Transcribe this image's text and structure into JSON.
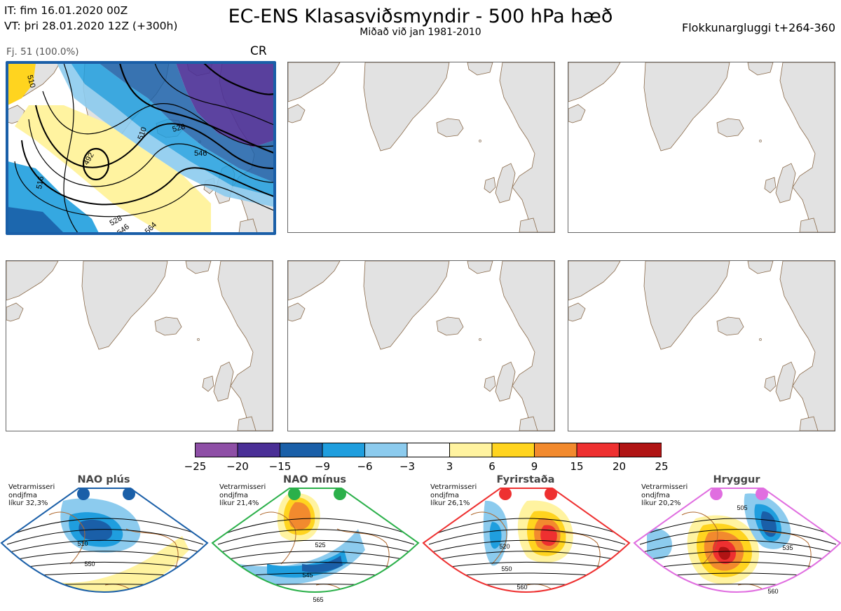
{
  "header": {
    "init_time": "IT: fim 16.01.2020 00Z",
    "valid_time": "VT: þri 28.01.2020 12Z  (+300h)",
    "title": "EC-ENS Klasasviðsmyndir - 500 hPa hæð",
    "subtitle": "Miðað við jan 1981-2010",
    "window": "Flokkunargluggi t+264-360"
  },
  "cluster": {
    "label": "Fj. 51 (100.0%)",
    "regime_code": "CR",
    "frame_color": "#1a5fa8",
    "contour_labels": [
      "510",
      "492",
      "528",
      "546",
      "528",
      "546",
      "564",
      "510",
      "516"
    ]
  },
  "colorbar": {
    "ticks": [
      "−25",
      "−20",
      "−15",
      "−9",
      "−6",
      "−3",
      "3",
      "6",
      "9",
      "15",
      "20",
      "25"
    ],
    "colors": [
      "#8e4fa6",
      "#4a2f96",
      "#1a5fa8",
      "#1f9ede",
      "#8ccbee",
      "#ffffff",
      "#fff3a0",
      "#ffd41f",
      "#f28a2e",
      "#ee3030",
      "#b01414"
    ]
  },
  "regimes": [
    {
      "name": "NAO plús",
      "desc": [
        "Vetrarmisseri",
        "ondjfma",
        "líkur 32,3%"
      ],
      "color": "#1a5fa8",
      "labels": [
        "510",
        "550"
      ]
    },
    {
      "name": "NAO mínus",
      "desc": [
        "Vetrarmisseri",
        "ondjfma",
        "líkur 21,4%"
      ],
      "color": "#2bb04a",
      "labels": [
        "525",
        "545",
        "565"
      ]
    },
    {
      "name": "Fyrirstaða",
      "desc": [
        "Vetrarmisseri",
        "ondjfma",
        "líkur 26,1%"
      ],
      "color": "#ee3030",
      "labels": [
        "520",
        "550",
        "560"
      ]
    },
    {
      "name": "Hryggur",
      "desc": [
        "Vetrarmisseri",
        "ondjfma",
        "líkur 20,2%"
      ],
      "color": "#e06ee0",
      "labels": [
        "505",
        "535",
        "560"
      ]
    }
  ]
}
